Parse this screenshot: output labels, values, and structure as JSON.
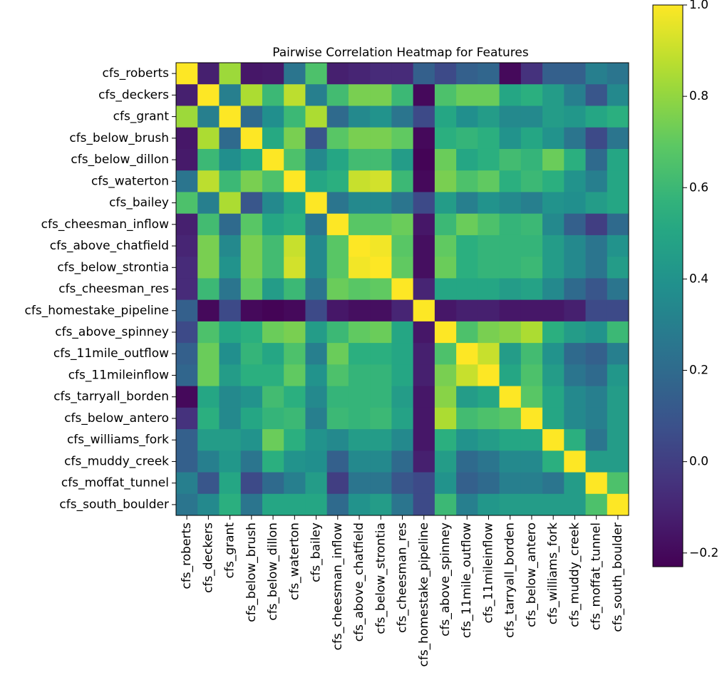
{
  "chart_data": {
    "type": "heatmap",
    "title": "Pairwise Correlation Heatmap for Features",
    "labels": [
      "cfs_roberts",
      "cfs_deckers",
      "cfs_grant",
      "cfs_below_brush",
      "cfs_below_dillon",
      "cfs_waterton",
      "cfs_bailey",
      "cfs_cheesman_inflow",
      "cfs_above_chatfield",
      "cfs_below_strontia",
      "cfs_cheesman_res",
      "cfs_homestake_pipeline",
      "cfs_above_spinney",
      "cfs_11mile_outflow",
      "cfs_11mileinflow",
      "cfs_tarryall_borden",
      "cfs_below_antero",
      "cfs_williams_fork",
      "cfs_muddy_creek",
      "cfs_moffat_tunnel",
      "cfs_south_boulder"
    ],
    "values": [
      [
        1.0,
        -0.12,
        0.82,
        -0.15,
        -0.14,
        0.25,
        0.65,
        -0.12,
        -0.1,
        -0.08,
        -0.08,
        0.15,
        0.05,
        0.15,
        0.18,
        -0.2,
        -0.05,
        0.15,
        0.15,
        0.3,
        0.25
      ],
      [
        -0.12,
        1.0,
        0.3,
        0.85,
        0.6,
        0.88,
        0.3,
        0.62,
        0.75,
        0.75,
        0.6,
        -0.2,
        0.65,
        0.72,
        0.72,
        0.5,
        0.55,
        0.45,
        0.3,
        0.1,
        0.35
      ],
      [
        0.82,
        0.3,
        1.0,
        0.2,
        0.38,
        0.6,
        0.85,
        0.2,
        0.35,
        0.4,
        0.25,
        0.05,
        0.5,
        0.38,
        0.45,
        0.35,
        0.35,
        0.45,
        0.42,
        0.5,
        0.55
      ],
      [
        -0.15,
        0.85,
        0.2,
        1.0,
        0.52,
        0.75,
        0.1,
        0.68,
        0.75,
        0.75,
        0.7,
        -0.2,
        0.55,
        0.58,
        0.55,
        0.4,
        0.5,
        0.4,
        0.25,
        0.05,
        0.25
      ],
      [
        -0.14,
        0.6,
        0.38,
        0.52,
        1.0,
        0.65,
        0.35,
        0.5,
        0.62,
        0.62,
        0.45,
        -0.22,
        0.72,
        0.5,
        0.55,
        0.62,
        0.58,
        0.72,
        0.55,
        0.2,
        0.5
      ],
      [
        0.25,
        0.88,
        0.6,
        0.75,
        0.65,
        1.0,
        0.5,
        0.55,
        0.9,
        0.92,
        0.6,
        -0.2,
        0.75,
        0.65,
        0.7,
        0.55,
        0.6,
        0.55,
        0.4,
        0.3,
        0.5
      ],
      [
        0.65,
        0.3,
        0.85,
        0.1,
        0.35,
        0.5,
        1.0,
        0.25,
        0.35,
        0.35,
        0.25,
        0.05,
        0.45,
        0.3,
        0.4,
        0.35,
        0.3,
        0.4,
        0.38,
        0.45,
        0.5
      ],
      [
        -0.12,
        0.62,
        0.2,
        0.68,
        0.5,
        0.55,
        0.25,
        1.0,
        0.68,
        0.68,
        0.72,
        -0.15,
        0.6,
        0.72,
        0.65,
        0.58,
        0.6,
        0.35,
        0.15,
        0.0,
        0.2
      ],
      [
        -0.1,
        0.75,
        0.35,
        0.75,
        0.62,
        0.9,
        0.35,
        0.68,
        1.0,
        0.98,
        0.68,
        -0.18,
        0.7,
        0.55,
        0.58,
        0.58,
        0.58,
        0.45,
        0.35,
        0.25,
        0.4
      ],
      [
        -0.08,
        0.75,
        0.4,
        0.75,
        0.62,
        0.92,
        0.35,
        0.68,
        0.98,
        1.0,
        0.7,
        -0.18,
        0.72,
        0.55,
        0.58,
        0.58,
        0.6,
        0.45,
        0.35,
        0.25,
        0.45
      ],
      [
        -0.08,
        0.6,
        0.25,
        0.7,
        0.45,
        0.6,
        0.25,
        0.72,
        0.68,
        0.7,
        1.0,
        -0.1,
        0.5,
        0.5,
        0.5,
        0.45,
        0.48,
        0.35,
        0.2,
        0.1,
        0.25
      ],
      [
        0.15,
        -0.2,
        0.05,
        -0.2,
        -0.22,
        -0.2,
        0.05,
        -0.15,
        -0.18,
        -0.18,
        -0.1,
        1.0,
        -0.15,
        -0.12,
        -0.12,
        -0.15,
        -0.15,
        -0.15,
        -0.12,
        0.05,
        0.05
      ],
      [
        0.05,
        0.65,
        0.5,
        0.55,
        0.72,
        0.75,
        0.45,
        0.6,
        0.7,
        0.72,
        0.5,
        -0.15,
        1.0,
        0.65,
        0.75,
        0.78,
        0.85,
        0.55,
        0.45,
        0.4,
        0.6
      ],
      [
        0.15,
        0.72,
        0.38,
        0.58,
        0.5,
        0.65,
        0.3,
        0.72,
        0.55,
        0.55,
        0.5,
        -0.12,
        0.65,
        1.0,
        0.9,
        0.45,
        0.62,
        0.4,
        0.2,
        0.15,
        0.3
      ],
      [
        0.18,
        0.72,
        0.45,
        0.55,
        0.55,
        0.7,
        0.4,
        0.65,
        0.58,
        0.58,
        0.5,
        -0.12,
        0.75,
        0.9,
        1.0,
        0.5,
        0.65,
        0.45,
        0.25,
        0.2,
        0.42
      ],
      [
        -0.2,
        0.5,
        0.35,
        0.4,
        0.62,
        0.55,
        0.35,
        0.58,
        0.58,
        0.58,
        0.45,
        -0.15,
        0.78,
        0.45,
        0.5,
        1.0,
        0.68,
        0.5,
        0.35,
        0.3,
        0.45
      ],
      [
        -0.05,
        0.55,
        0.35,
        0.5,
        0.58,
        0.6,
        0.3,
        0.6,
        0.58,
        0.6,
        0.48,
        -0.15,
        0.85,
        0.62,
        0.65,
        0.68,
        1.0,
        0.5,
        0.35,
        0.3,
        0.45
      ],
      [
        0.15,
        0.45,
        0.45,
        0.4,
        0.72,
        0.55,
        0.4,
        0.35,
        0.45,
        0.45,
        0.35,
        -0.15,
        0.55,
        0.4,
        0.45,
        0.5,
        0.5,
        1.0,
        0.55,
        0.25,
        0.45
      ],
      [
        0.15,
        0.3,
        0.42,
        0.25,
        0.55,
        0.4,
        0.38,
        0.15,
        0.35,
        0.35,
        0.2,
        -0.12,
        0.45,
        0.2,
        0.25,
        0.35,
        0.35,
        0.55,
        1.0,
        0.45,
        0.45
      ],
      [
        0.3,
        0.1,
        0.5,
        0.05,
        0.2,
        0.3,
        0.45,
        0.0,
        0.25,
        0.25,
        0.1,
        0.05,
        0.4,
        0.15,
        0.2,
        0.3,
        0.3,
        0.25,
        0.45,
        1.0,
        0.65
      ],
      [
        0.25,
        0.35,
        0.55,
        0.25,
        0.5,
        0.5,
        0.5,
        0.2,
        0.4,
        0.45,
        0.25,
        0.05,
        0.6,
        0.3,
        0.42,
        0.45,
        0.45,
        0.45,
        0.45,
        0.65,
        1.0
      ]
    ],
    "colormap": "viridis",
    "vmin": -0.23,
    "vmax": 1.0,
    "colorbar_ticks": [
      -0.2,
      0.0,
      0.2,
      0.4,
      0.6,
      0.8,
      1.0
    ],
    "colorbar_tick_labels": [
      "−0.2",
      "0.0",
      "0.2",
      "0.4",
      "0.6",
      "0.8",
      "1.0"
    ],
    "xlabel": "",
    "ylabel": ""
  }
}
